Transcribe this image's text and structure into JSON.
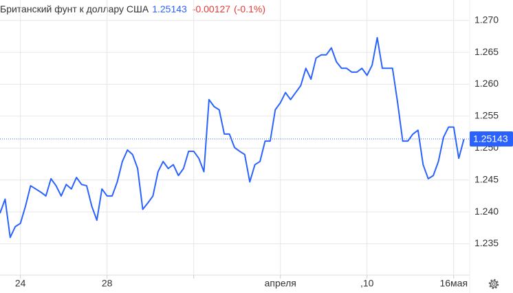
{
  "chart_data": {
    "type": "line",
    "title": "Британский фунт к доллару США",
    "price": 1.25143,
    "change": -0.00127,
    "change_pct": "(-0.1%)",
    "series": [
      {
        "color": "#2962ff",
        "values": [
          1.2398,
          1.242,
          1.236,
          1.2377,
          1.2382,
          1.2409,
          1.2441,
          1.2436,
          1.2431,
          1.2425,
          1.2452,
          1.2441,
          1.2425,
          1.2443,
          1.2436,
          1.2454,
          1.2443,
          1.2441,
          1.2409,
          1.2387,
          1.2436,
          1.2425,
          1.2425,
          1.2447,
          1.2479,
          1.2497,
          1.249,
          1.2468,
          1.2404,
          1.2414,
          1.2425,
          1.2463,
          1.2479,
          1.2468,
          1.2474,
          1.2457,
          1.2468,
          1.2495,
          1.2495,
          1.2484,
          1.2463,
          1.2576,
          1.2565,
          1.256,
          1.2522,
          1.2522,
          1.2501,
          1.2495,
          1.249,
          1.2447,
          1.2474,
          1.2479,
          1.2511,
          1.2511,
          1.256,
          1.2571,
          1.2587,
          1.2576,
          1.2587,
          1.2598,
          1.2625,
          1.2608,
          1.2641,
          1.2646,
          1.2646,
          1.2657,
          1.2635,
          1.2625,
          1.2625,
          1.2619,
          1.2619,
          1.2625,
          1.2614,
          1.263,
          1.2673,
          1.2625,
          1.2625,
          1.2625,
          1.2571,
          1.2511,
          1.2511,
          1.2522,
          1.2528,
          1.2474,
          1.2452,
          1.2457,
          1.2479,
          1.2517,
          1.2533,
          1.2533,
          1.2484,
          1.2514
        ]
      }
    ],
    "xlim": [
      0,
      92
    ],
    "xticks": [
      {
        "value": 4,
        "label": "24"
      },
      {
        "value": 21,
        "label": "28"
      },
      {
        "value": 38,
        "label": null
      },
      {
        "value": 55,
        "label": "апреля"
      },
      {
        "value": 72,
        "label": ",10"
      },
      {
        "value": 89,
        "label": "16мая"
      }
    ],
    "ylim": [
      1.2301,
      1.2732
    ],
    "yticks": [
      {
        "value": 1.235,
        "label": "1.235"
      },
      {
        "value": 1.24,
        "label": "1.240"
      },
      {
        "value": 1.245,
        "label": "1.245"
      },
      {
        "value": 1.25,
        "label": "1.250"
      },
      {
        "value": 1.255,
        "label": "1.255"
      },
      {
        "value": 1.26,
        "label": "1.260"
      },
      {
        "value": 1.265,
        "label": "1.265"
      },
      {
        "value": 1.27,
        "label": "1.270"
      }
    ],
    "grid": true
  }
}
